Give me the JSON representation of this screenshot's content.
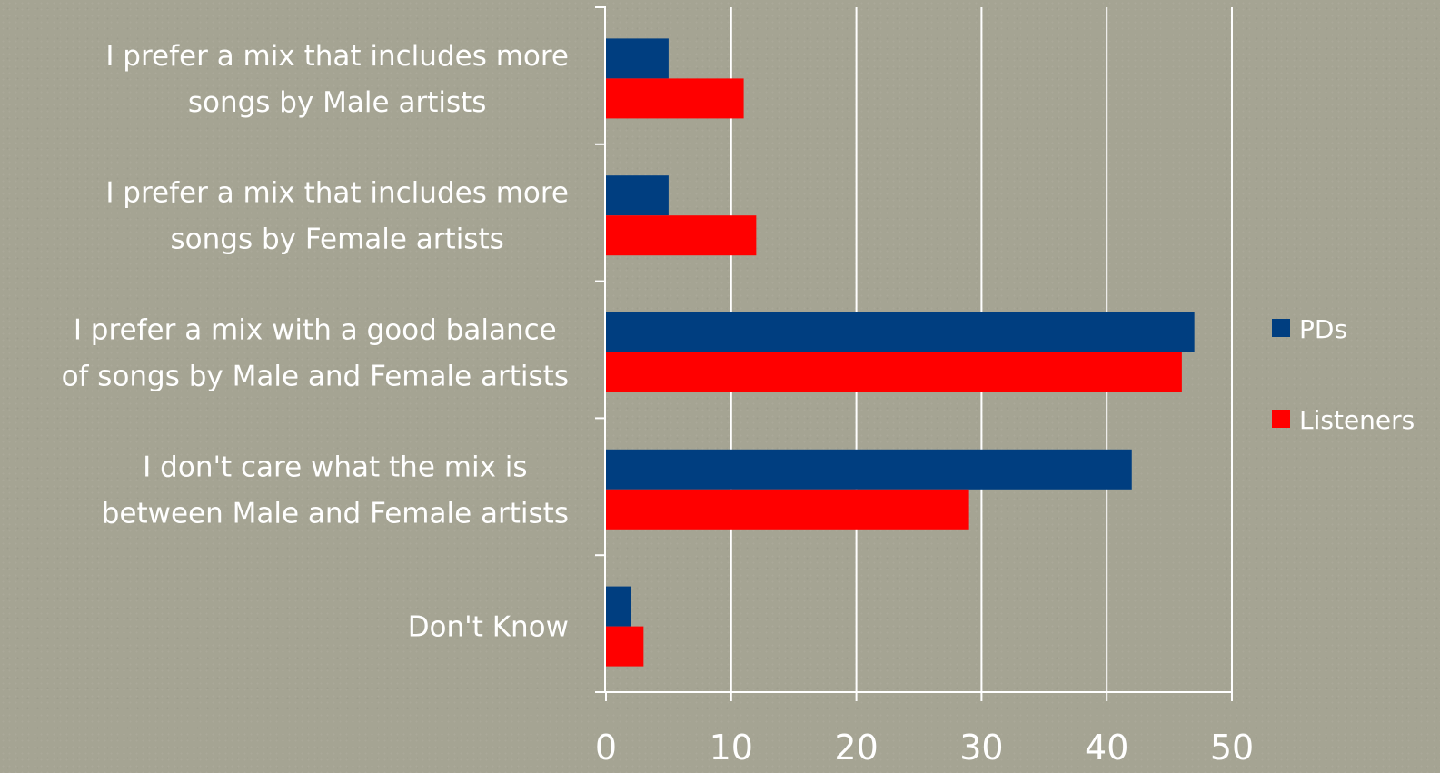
{
  "chart_data": {
    "type": "bar",
    "orientation": "horizontal",
    "title": "",
    "xlabel": "",
    "ylabel": "",
    "xlim": [
      0,
      50
    ],
    "xticks": [
      0,
      10,
      20,
      30,
      40,
      50
    ],
    "grid": "vertical",
    "legend_position": "right",
    "categories": [
      [
        "I prefer a mix that includes more",
        "songs by Male artists"
      ],
      [
        "I prefer a mix that includes more",
        "songs by Female artists"
      ],
      [
        "I prefer a mix with a good balance",
        "of songs by Male and Female artists"
      ],
      [
        "I don't care what the mix is",
        "between Male and Female artists"
      ],
      [
        "Don't Know"
      ]
    ],
    "series": [
      {
        "name": "PDs",
        "color": "#003e80",
        "values": [
          5,
          5,
          47,
          42,
          2
        ]
      },
      {
        "name": "Listeners",
        "color": "#ff0000",
        "values": [
          11,
          12,
          46,
          29,
          3
        ]
      }
    ]
  }
}
